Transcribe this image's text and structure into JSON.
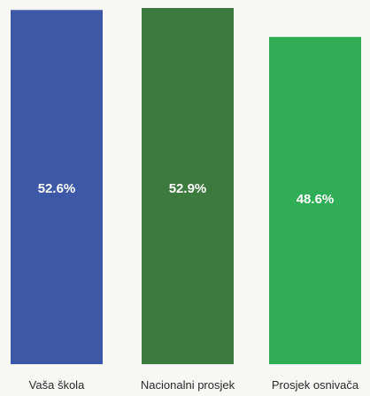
{
  "chart_data": {
    "type": "bar",
    "categories": [
      "Vaša škola",
      "Nacionalni prosjek",
      "Prosjek osnivača"
    ],
    "values": [
      52.6,
      52.9,
      48.6
    ],
    "value_labels": [
      "52.6%",
      "52.9%",
      "48.6%"
    ],
    "colors": [
      "#3e58a8",
      "#3d7a3d",
      "#2fae55"
    ],
    "ylim": [
      0,
      52.9
    ],
    "grid": false,
    "legend": "none"
  }
}
